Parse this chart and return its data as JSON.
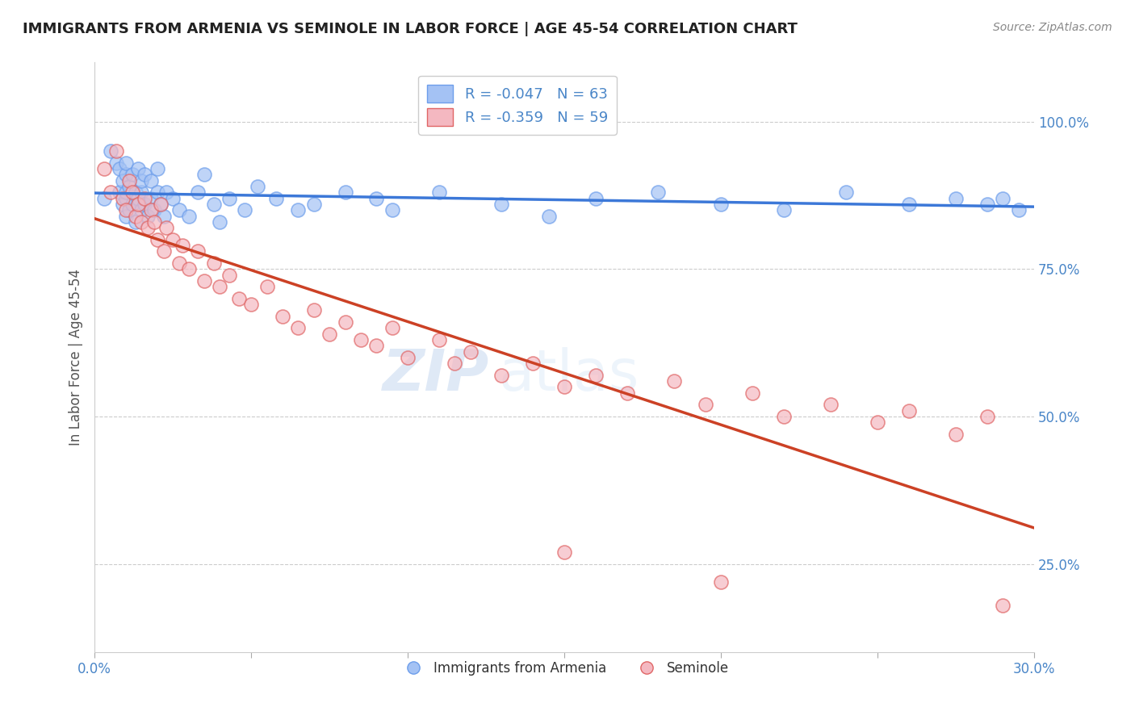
{
  "title": "IMMIGRANTS FROM ARMENIA VS SEMINOLE IN LABOR FORCE | AGE 45-54 CORRELATION CHART",
  "source": "Source: ZipAtlas.com",
  "ylabel": "In Labor Force | Age 45-54",
  "xlim": [
    0.0,
    0.3
  ],
  "ylim": [
    0.1,
    1.1
  ],
  "xticks": [
    0.0,
    0.05,
    0.1,
    0.15,
    0.2,
    0.25,
    0.3
  ],
  "xticklabels": [
    "0.0%",
    "",
    "",
    "",
    "",
    "",
    "30.0%"
  ],
  "ytick_positions": [
    0.25,
    0.5,
    0.75,
    1.0
  ],
  "ytick_labels": [
    "25.0%",
    "50.0%",
    "75.0%",
    "100.0%"
  ],
  "blue_R": -0.047,
  "blue_N": 63,
  "pink_R": -0.359,
  "pink_N": 59,
  "blue_color": "#a4c2f4",
  "pink_color": "#f4b8c1",
  "blue_edge_color": "#6d9eeb",
  "pink_edge_color": "#e06666",
  "blue_line_color": "#3c78d8",
  "pink_line_color": "#cc4125",
  "legend_label_blue": "Immigrants from Armenia",
  "legend_label_pink": "Seminole",
  "blue_scatter_x": [
    0.003,
    0.005,
    0.007,
    0.008,
    0.008,
    0.009,
    0.009,
    0.01,
    0.01,
    0.01,
    0.01,
    0.01,
    0.011,
    0.011,
    0.012,
    0.012,
    0.013,
    0.013,
    0.014,
    0.014,
    0.015,
    0.015,
    0.015,
    0.016,
    0.016,
    0.017,
    0.018,
    0.018,
    0.019,
    0.02,
    0.02,
    0.021,
    0.022,
    0.023,
    0.025,
    0.027,
    0.03,
    0.033,
    0.035,
    0.038,
    0.04,
    0.043,
    0.048,
    0.052,
    0.058,
    0.065,
    0.07,
    0.08,
    0.09,
    0.095,
    0.11,
    0.13,
    0.145,
    0.16,
    0.18,
    0.2,
    0.22,
    0.24,
    0.26,
    0.275,
    0.285,
    0.29,
    0.295
  ],
  "blue_scatter_y": [
    0.87,
    0.95,
    0.93,
    0.88,
    0.92,
    0.86,
    0.9,
    0.84,
    0.87,
    0.88,
    0.91,
    0.93,
    0.85,
    0.89,
    0.86,
    0.91,
    0.83,
    0.88,
    0.87,
    0.92,
    0.85,
    0.88,
    0.9,
    0.86,
    0.91,
    0.84,
    0.87,
    0.9,
    0.85,
    0.88,
    0.92,
    0.86,
    0.84,
    0.88,
    0.87,
    0.85,
    0.84,
    0.88,
    0.91,
    0.86,
    0.83,
    0.87,
    0.85,
    0.89,
    0.87,
    0.85,
    0.86,
    0.88,
    0.87,
    0.85,
    0.88,
    0.86,
    0.84,
    0.87,
    0.88,
    0.86,
    0.85,
    0.88,
    0.86,
    0.87,
    0.86,
    0.87,
    0.85
  ],
  "pink_scatter_x": [
    0.003,
    0.005,
    0.007,
    0.009,
    0.01,
    0.011,
    0.012,
    0.013,
    0.014,
    0.015,
    0.016,
    0.017,
    0.018,
    0.019,
    0.02,
    0.021,
    0.022,
    0.023,
    0.025,
    0.027,
    0.028,
    0.03,
    0.033,
    0.035,
    0.038,
    0.04,
    0.043,
    0.046,
    0.05,
    0.055,
    0.06,
    0.065,
    0.07,
    0.075,
    0.08,
    0.085,
    0.09,
    0.095,
    0.1,
    0.11,
    0.115,
    0.12,
    0.13,
    0.14,
    0.15,
    0.16,
    0.17,
    0.185,
    0.195,
    0.21,
    0.22,
    0.235,
    0.25,
    0.26,
    0.275,
    0.285,
    0.15,
    0.2,
    0.29
  ],
  "pink_scatter_y": [
    0.92,
    0.88,
    0.95,
    0.87,
    0.85,
    0.9,
    0.88,
    0.84,
    0.86,
    0.83,
    0.87,
    0.82,
    0.85,
    0.83,
    0.8,
    0.86,
    0.78,
    0.82,
    0.8,
    0.76,
    0.79,
    0.75,
    0.78,
    0.73,
    0.76,
    0.72,
    0.74,
    0.7,
    0.69,
    0.72,
    0.67,
    0.65,
    0.68,
    0.64,
    0.66,
    0.63,
    0.62,
    0.65,
    0.6,
    0.63,
    0.59,
    0.61,
    0.57,
    0.59,
    0.55,
    0.57,
    0.54,
    0.56,
    0.52,
    0.54,
    0.5,
    0.52,
    0.49,
    0.51,
    0.47,
    0.5,
    0.27,
    0.22,
    0.18
  ]
}
